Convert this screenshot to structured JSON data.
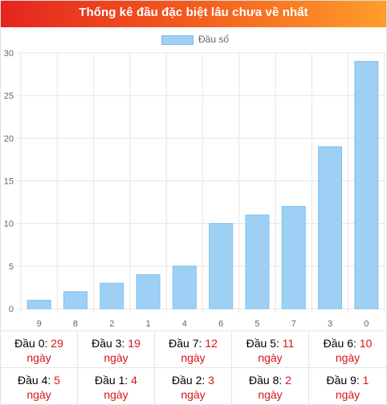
{
  "header": {
    "title": "Thống kê đầu đặc biệt lâu chưa về nhất"
  },
  "legend": {
    "label": "Đầu số"
  },
  "colors": {
    "bar": "#9ecff4",
    "bar_border": "#84c0ee",
    "grid": "#e5e5e5",
    "header_start": "#e52521",
    "header_end": "#ff9d2b",
    "value_text": "#d8141b"
  },
  "chart_data": {
    "type": "bar",
    "categories": [
      "9",
      "8",
      "2",
      "1",
      "4",
      "6",
      "5",
      "7",
      "3",
      "0"
    ],
    "series": [
      {
        "name": "Đầu số",
        "values": [
          1,
          2,
          3,
          4,
          5,
          10,
          11,
          12,
          19,
          29
        ]
      }
    ],
    "title": "",
    "xlabel": "",
    "ylabel": "",
    "ylim": [
      0,
      30
    ],
    "yticks": [
      "0",
      "5",
      "10",
      "15",
      "20",
      "25",
      "30"
    ],
    "grid": true,
    "legend_position": "top-center"
  },
  "stats": [
    {
      "label": "Đầu 0:",
      "value": "29",
      "unit": "ngày"
    },
    {
      "label": "Đầu 3:",
      "value": "19",
      "unit": "ngày"
    },
    {
      "label": "Đầu 7:",
      "value": "12",
      "unit": "ngày"
    },
    {
      "label": "Đầu 5:",
      "value": "11",
      "unit": "ngày"
    },
    {
      "label": "Đầu 6:",
      "value": "10",
      "unit": "ngày"
    },
    {
      "label": "Đầu 4:",
      "value": "5",
      "unit": "ngày"
    },
    {
      "label": "Đầu 1:",
      "value": "4",
      "unit": "ngày"
    },
    {
      "label": "Đầu 2:",
      "value": "3",
      "unit": "ngày"
    },
    {
      "label": "Đầu 8:",
      "value": "2",
      "unit": "ngày"
    },
    {
      "label": "Đầu 9:",
      "value": "1",
      "unit": "ngày"
    }
  ]
}
